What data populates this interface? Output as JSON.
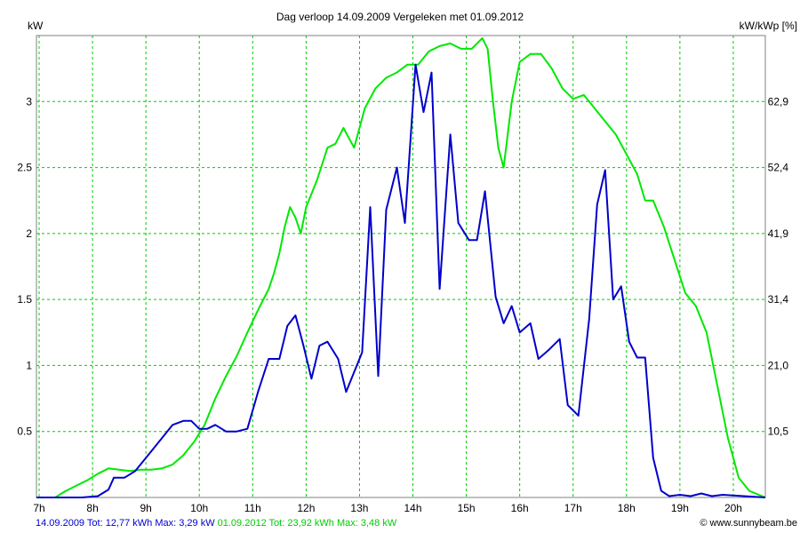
{
  "chart_data": {
    "type": "line",
    "title": "Dag  verloop 14.09.2009   Vergeleken met 01.09.2012",
    "ylabel_left": "kW",
    "ylabel_right": "kW/kWp [%]",
    "xlim": [
      6.95,
      20.6
    ],
    "ylim": [
      0,
      3.5
    ],
    "x_ticks": [
      {
        "value": 7,
        "label": "7h"
      },
      {
        "value": 8,
        "label": "8h"
      },
      {
        "value": 9,
        "label": "9h"
      },
      {
        "value": 10,
        "label": "10h"
      },
      {
        "value": 11,
        "label": "11h"
      },
      {
        "value": 12,
        "label": "12h"
      },
      {
        "value": 13,
        "label": "13h"
      },
      {
        "value": 14,
        "label": "14h"
      },
      {
        "value": 15,
        "label": "15h"
      },
      {
        "value": 16,
        "label": "16h"
      },
      {
        "value": 17,
        "label": "17h"
      },
      {
        "value": 18,
        "label": "18h"
      },
      {
        "value": 19,
        "label": "19h"
      },
      {
        "value": 20,
        "label": "20h"
      }
    ],
    "y_ticks_left": [
      {
        "value": 0.5,
        "label": "0.5"
      },
      {
        "value": 1,
        "label": "1"
      },
      {
        "value": 1.5,
        "label": "1.5"
      },
      {
        "value": 2,
        "label": "2"
      },
      {
        "value": 2.5,
        "label": "2.5"
      },
      {
        "value": 3,
        "label": "3"
      }
    ],
    "y_ticks_right": [
      {
        "value": 0.5,
        "label": "10,5"
      },
      {
        "value": 1,
        "label": "21,0"
      },
      {
        "value": 1.5,
        "label": "31,4"
      },
      {
        "value": 2,
        "label": "41,9"
      },
      {
        "value": 2.5,
        "label": "52,4"
      },
      {
        "value": 3,
        "label": "62,9"
      }
    ],
    "grid": true,
    "colors": {
      "grid": "#00cc00",
      "frame": "#808080"
    },
    "series": [
      {
        "name": "01.09.2012",
        "color": "#00e800",
        "points": [
          [
            6.95,
            0
          ],
          [
            7.3,
            0
          ],
          [
            7.5,
            0.05
          ],
          [
            7.7,
            0.09
          ],
          [
            7.9,
            0.13
          ],
          [
            8.1,
            0.18
          ],
          [
            8.3,
            0.22
          ],
          [
            8.5,
            0.21
          ],
          [
            8.7,
            0.2
          ],
          [
            8.9,
            0.21
          ],
          [
            9.1,
            0.21
          ],
          [
            9.3,
            0.22
          ],
          [
            9.5,
            0.25
          ],
          [
            9.7,
            0.32
          ],
          [
            9.9,
            0.42
          ],
          [
            10.1,
            0.55
          ],
          [
            10.3,
            0.75
          ],
          [
            10.5,
            0.92
          ],
          [
            10.7,
            1.07
          ],
          [
            10.9,
            1.25
          ],
          [
            11.1,
            1.42
          ],
          [
            11.3,
            1.58
          ],
          [
            11.4,
            1.7
          ],
          [
            11.5,
            1.85
          ],
          [
            11.6,
            2.05
          ],
          [
            11.7,
            2.2
          ],
          [
            11.8,
            2.12
          ],
          [
            11.9,
            2.0
          ],
          [
            12.0,
            2.2
          ],
          [
            12.2,
            2.4
          ],
          [
            12.4,
            2.65
          ],
          [
            12.55,
            2.68
          ],
          [
            12.7,
            2.8
          ],
          [
            12.9,
            2.65
          ],
          [
            13.1,
            2.95
          ],
          [
            13.3,
            3.1
          ],
          [
            13.5,
            3.18
          ],
          [
            13.7,
            3.22
          ],
          [
            13.9,
            3.28
          ],
          [
            14.1,
            3.28
          ],
          [
            14.3,
            3.38
          ],
          [
            14.5,
            3.42
          ],
          [
            14.7,
            3.44
          ],
          [
            14.9,
            3.4
          ],
          [
            15.1,
            3.4
          ],
          [
            15.3,
            3.48
          ],
          [
            15.4,
            3.4
          ],
          [
            15.5,
            3.0
          ],
          [
            15.6,
            2.65
          ],
          [
            15.7,
            2.5
          ],
          [
            15.85,
            3.0
          ],
          [
            16.0,
            3.3
          ],
          [
            16.2,
            3.36
          ],
          [
            16.4,
            3.36
          ],
          [
            16.6,
            3.25
          ],
          [
            16.8,
            3.1
          ],
          [
            17.0,
            3.02
          ],
          [
            17.2,
            3.05
          ],
          [
            17.4,
            2.95
          ],
          [
            17.6,
            2.85
          ],
          [
            17.8,
            2.75
          ],
          [
            18.0,
            2.6
          ],
          [
            18.2,
            2.45
          ],
          [
            18.35,
            2.25
          ],
          [
            18.5,
            2.25
          ],
          [
            18.7,
            2.05
          ],
          [
            18.9,
            1.8
          ],
          [
            19.1,
            1.55
          ],
          [
            19.3,
            1.45
          ],
          [
            19.5,
            1.25
          ],
          [
            19.7,
            0.85
          ],
          [
            19.9,
            0.45
          ],
          [
            20.1,
            0.15
          ],
          [
            20.3,
            0.05
          ],
          [
            20.6,
            0
          ]
        ]
      },
      {
        "name": "14.09.2009",
        "color": "#0000cc",
        "points": [
          [
            6.95,
            0
          ],
          [
            7.8,
            0
          ],
          [
            8.1,
            0.01
          ],
          [
            8.3,
            0.06
          ],
          [
            8.4,
            0.15
          ],
          [
            8.6,
            0.15
          ],
          [
            8.8,
            0.2
          ],
          [
            8.9,
            0.25
          ],
          [
            9.1,
            0.35
          ],
          [
            9.3,
            0.45
          ],
          [
            9.5,
            0.55
          ],
          [
            9.7,
            0.58
          ],
          [
            9.85,
            0.58
          ],
          [
            10.0,
            0.52
          ],
          [
            10.15,
            0.52
          ],
          [
            10.3,
            0.55
          ],
          [
            10.5,
            0.5
          ],
          [
            10.7,
            0.5
          ],
          [
            10.9,
            0.52
          ],
          [
            11.1,
            0.8
          ],
          [
            11.3,
            1.05
          ],
          [
            11.5,
            1.05
          ],
          [
            11.65,
            1.3
          ],
          [
            11.8,
            1.38
          ],
          [
            11.95,
            1.15
          ],
          [
            12.1,
            0.9
          ],
          [
            12.25,
            1.15
          ],
          [
            12.4,
            1.18
          ],
          [
            12.6,
            1.05
          ],
          [
            12.75,
            0.8
          ],
          [
            12.9,
            0.95
          ],
          [
            13.05,
            1.1
          ],
          [
            13.2,
            2.2
          ],
          [
            13.35,
            0.92
          ],
          [
            13.5,
            2.18
          ],
          [
            13.7,
            2.5
          ],
          [
            13.85,
            2.08
          ],
          [
            14.05,
            3.28
          ],
          [
            14.2,
            2.92
          ],
          [
            14.35,
            3.22
          ],
          [
            14.5,
            1.58
          ],
          [
            14.7,
            2.75
          ],
          [
            14.85,
            2.08
          ],
          [
            15.05,
            1.95
          ],
          [
            15.2,
            1.95
          ],
          [
            15.35,
            2.32
          ],
          [
            15.55,
            1.52
          ],
          [
            15.7,
            1.32
          ],
          [
            15.85,
            1.45
          ],
          [
            16.0,
            1.25
          ],
          [
            16.2,
            1.32
          ],
          [
            16.35,
            1.05
          ],
          [
            16.55,
            1.12
          ],
          [
            16.75,
            1.2
          ],
          [
            16.9,
            0.7
          ],
          [
            17.1,
            0.62
          ],
          [
            17.3,
            1.35
          ],
          [
            17.45,
            2.22
          ],
          [
            17.6,
            2.48
          ],
          [
            17.75,
            1.5
          ],
          [
            17.9,
            1.6
          ],
          [
            18.05,
            1.18
          ],
          [
            18.2,
            1.06
          ],
          [
            18.35,
            1.06
          ],
          [
            18.5,
            0.3
          ],
          [
            18.65,
            0.05
          ],
          [
            18.8,
            0.01
          ],
          [
            19.0,
            0.02
          ],
          [
            19.2,
            0.01
          ],
          [
            19.4,
            0.03
          ],
          [
            19.6,
            0.01
          ],
          [
            19.8,
            0.02
          ],
          [
            20.6,
            0
          ]
        ]
      }
    ]
  },
  "footer": {
    "legend1": "14.09.2009 Tot: 12,77 kWh Max: 3,29 kW",
    "legend2": "01.09.2012 Tot: 23,92 kWh Max: 3,48 kW",
    "credit": "© www.sunnybeam.be"
  }
}
